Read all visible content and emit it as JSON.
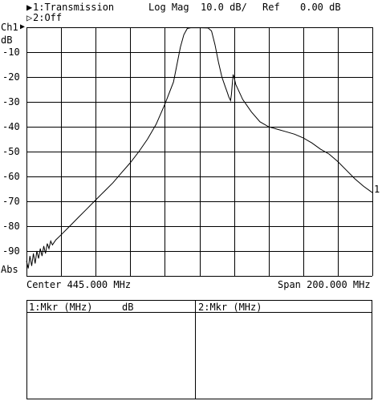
{
  "header": {
    "ch1_marker": "▶",
    "ch1_label": "1:Transmission",
    "ch2_marker": "▷",
    "ch2_label": "2:Off",
    "format": "Log Mag",
    "scale": "10.0 dB/",
    "ref_label": "Ref",
    "ref_value": "0.00 dB"
  },
  "axis": {
    "channel": "Ch1",
    "ref_arrow": "▶",
    "unit": "dB",
    "y_ticks": [
      "-10",
      "-20",
      "-30",
      "-40",
      "-50",
      "-60",
      "-70",
      "-80",
      "-90"
    ],
    "bottom_label": "Abs",
    "trace_end_marker": "1"
  },
  "footer": {
    "center": "Center 445.000 MHz",
    "span": "Span 200.000 MHz"
  },
  "marker_table": {
    "left_header": "1:Mkr (MHz)",
    "left_unit": "dB",
    "right_header": "2:Mkr (MHz)"
  },
  "colors": {
    "trace": "#000000",
    "grid": "#000000",
    "background": "#ffffff"
  },
  "chart_data": {
    "type": "line",
    "x_range_mhz": [
      345,
      545
    ],
    "ylim": [
      -100,
      0
    ],
    "ylabel": "dB",
    "grid": true,
    "series": [
      {
        "points": [
          [
            345,
            -94
          ],
          [
            346,
            -97
          ],
          [
            347,
            -92
          ],
          [
            348,
            -96
          ],
          [
            349,
            -91
          ],
          [
            350,
            -95
          ],
          [
            351,
            -90
          ],
          [
            352,
            -93
          ],
          [
            353,
            -89
          ],
          [
            354,
            -92
          ],
          [
            355,
            -88
          ],
          [
            356,
            -91
          ],
          [
            357,
            -87
          ],
          [
            358,
            -89
          ],
          [
            359,
            -86
          ],
          [
            360,
            -87.5
          ],
          [
            362,
            -85.5
          ],
          [
            365,
            -83.5
          ],
          [
            370,
            -80
          ],
          [
            375,
            -76.5
          ],
          [
            380,
            -73
          ],
          [
            385,
            -69.5
          ],
          [
            390,
            -66
          ],
          [
            395,
            -62.5
          ],
          [
            400,
            -58.5
          ],
          [
            405,
            -54.5
          ],
          [
            410,
            -50
          ],
          [
            415,
            -45
          ],
          [
            420,
            -39
          ],
          [
            425,
            -31
          ],
          [
            430,
            -22
          ],
          [
            432,
            -15
          ],
          [
            434,
            -8
          ],
          [
            436,
            -3
          ],
          [
            438,
            -0.5
          ],
          [
            440,
            -0.2
          ],
          [
            445,
            -0.2
          ],
          [
            450,
            -0.3
          ],
          [
            452,
            -1.5
          ],
          [
            454,
            -7
          ],
          [
            456,
            -14
          ],
          [
            458,
            -20
          ],
          [
            460,
            -24
          ],
          [
            461,
            -26
          ],
          [
            462,
            -28
          ],
          [
            463,
            -29.5
          ],
          [
            463.5,
            -27
          ],
          [
            464,
            -23
          ],
          [
            464.5,
            -19
          ],
          [
            465,
            -20
          ],
          [
            466,
            -23
          ],
          [
            468,
            -26
          ],
          [
            470,
            -29
          ],
          [
            475,
            -34
          ],
          [
            480,
            -38
          ],
          [
            485,
            -40
          ],
          [
            490,
            -41
          ],
          [
            495,
            -42
          ],
          [
            500,
            -43
          ],
          [
            505,
            -44.5
          ],
          [
            510,
            -46.5
          ],
          [
            515,
            -49
          ],
          [
            520,
            -51
          ],
          [
            525,
            -54
          ],
          [
            530,
            -57.5
          ],
          [
            535,
            -61
          ],
          [
            540,
            -64
          ],
          [
            545,
            -66.5
          ]
        ]
      }
    ]
  }
}
